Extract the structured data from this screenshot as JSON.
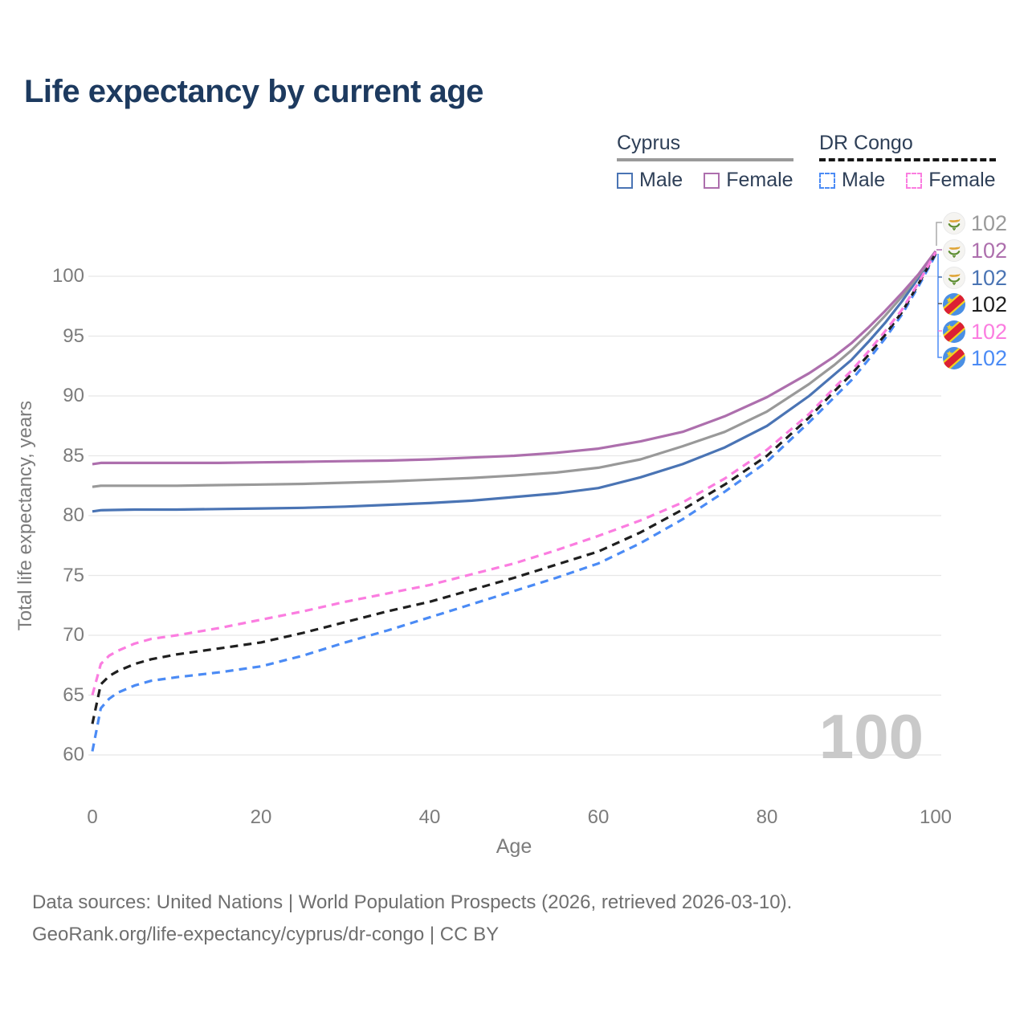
{
  "title": "Life expectancy by current age",
  "legend": {
    "groups": [
      {
        "name": "Cyprus",
        "line_style": "solid",
        "items": [
          {
            "label": "Male",
            "color": "#4a74b4"
          },
          {
            "label": "Female",
            "color": "#ad6fad"
          }
        ]
      },
      {
        "name": "DR Congo",
        "line_style": "dashed",
        "items": [
          {
            "label": "Male",
            "color": "#4b8bf5"
          },
          {
            "label": "Female",
            "color": "#fb7de0"
          }
        ]
      }
    ]
  },
  "watermark_age": "100",
  "end_labels": [
    {
      "value": "102",
      "color": "#9a9a9a",
      "flag": "cyprus",
      "series": "Cyprus Both sexes"
    },
    {
      "value": "102",
      "color": "#ad6fad",
      "flag": "cyprus",
      "series": "Cyprus Female"
    },
    {
      "value": "102",
      "color": "#4a74b4",
      "flag": "cyprus",
      "series": "Cyprus Male"
    },
    {
      "value": "102",
      "color": "#1f1f1f",
      "flag": "drcongo",
      "series": "DR Congo Both sexes"
    },
    {
      "value": "102",
      "color": "#fb7de0",
      "flag": "drcongo",
      "series": "DR Congo Female"
    },
    {
      "value": "102",
      "color": "#4b8bf5",
      "flag": "drcongo",
      "series": "DR Congo Male"
    }
  ],
  "footer": {
    "line1": "Data sources: United Nations | World Population Prospects (2026, retrieved 2026-03-10).",
    "line2": "GeoRank.org/life-expectancy/cyprus/dr-congo | CC BY"
  },
  "chart_data": {
    "type": "line",
    "title": "Life expectancy by current age",
    "xlabel": "Age",
    "ylabel": "Total life expectancy, years",
    "x_ticks": [
      0,
      20,
      40,
      60,
      80,
      100
    ],
    "y_ticks": [
      60,
      65,
      70,
      75,
      80,
      85,
      90,
      95,
      100
    ],
    "xlim": [
      0,
      100
    ],
    "ylim": [
      58.5,
      103
    ],
    "grid": "horizontal",
    "legend_position": "top-right",
    "series": [
      {
        "name": "Cyprus Male",
        "country": "Cyprus",
        "sex": "male",
        "color": "#4a74b4",
        "dash": "solid",
        "points": [
          [
            0,
            80.35
          ],
          [
            1,
            80.45
          ],
          [
            5,
            80.5
          ],
          [
            10,
            80.5
          ],
          [
            15,
            80.55
          ],
          [
            20,
            80.6
          ],
          [
            25,
            80.65
          ],
          [
            30,
            80.75
          ],
          [
            35,
            80.9
          ],
          [
            40,
            81.05
          ],
          [
            45,
            81.25
          ],
          [
            50,
            81.55
          ],
          [
            55,
            81.85
          ],
          [
            60,
            82.3
          ],
          [
            65,
            83.2
          ],
          [
            70,
            84.3
          ],
          [
            75,
            85.7
          ],
          [
            80,
            87.5
          ],
          [
            85,
            90.0
          ],
          [
            88,
            91.8
          ],
          [
            90,
            93.0
          ],
          [
            92,
            94.5
          ],
          [
            94,
            96.1
          ],
          [
            96,
            97.9
          ],
          [
            98,
            99.9
          ],
          [
            100,
            101.9
          ]
        ]
      },
      {
        "name": "Cyprus Both sexes",
        "country": "Cyprus",
        "sex": "both",
        "color": "#999999",
        "dash": "solid",
        "points": [
          [
            0,
            82.4
          ],
          [
            1,
            82.5
          ],
          [
            5,
            82.5
          ],
          [
            10,
            82.5
          ],
          [
            15,
            82.55
          ],
          [
            20,
            82.6
          ],
          [
            25,
            82.65
          ],
          [
            30,
            82.75
          ],
          [
            35,
            82.85
          ],
          [
            40,
            83.0
          ],
          [
            45,
            83.15
          ],
          [
            50,
            83.35
          ],
          [
            55,
            83.6
          ],
          [
            60,
            84.0
          ],
          [
            65,
            84.7
          ],
          [
            70,
            85.8
          ],
          [
            75,
            87.0
          ],
          [
            80,
            88.7
          ],
          [
            85,
            91.0
          ],
          [
            88,
            92.6
          ],
          [
            90,
            93.8
          ],
          [
            92,
            95.2
          ],
          [
            94,
            96.7
          ],
          [
            96,
            98.3
          ],
          [
            98,
            100.1
          ],
          [
            100,
            102.0
          ]
        ]
      },
      {
        "name": "Cyprus Female",
        "country": "Cyprus",
        "sex": "female",
        "color": "#ad6fad",
        "dash": "solid",
        "points": [
          [
            0,
            84.3
          ],
          [
            1,
            84.4
          ],
          [
            5,
            84.4
          ],
          [
            10,
            84.4
          ],
          [
            15,
            84.4
          ],
          [
            20,
            84.45
          ],
          [
            25,
            84.5
          ],
          [
            30,
            84.55
          ],
          [
            35,
            84.6
          ],
          [
            40,
            84.7
          ],
          [
            45,
            84.85
          ],
          [
            50,
            85.0
          ],
          [
            55,
            85.25
          ],
          [
            60,
            85.6
          ],
          [
            65,
            86.2
          ],
          [
            70,
            87.0
          ],
          [
            75,
            88.3
          ],
          [
            80,
            89.9
          ],
          [
            85,
            91.9
          ],
          [
            88,
            93.3
          ],
          [
            90,
            94.4
          ],
          [
            92,
            95.7
          ],
          [
            94,
            97.1
          ],
          [
            96,
            98.6
          ],
          [
            98,
            100.2
          ],
          [
            100,
            102.1
          ]
        ]
      },
      {
        "name": "DR Congo Male",
        "country": "DR Congo",
        "sex": "male",
        "color": "#4b8bf5",
        "dash": "dashed",
        "points": [
          [
            0,
            60.3
          ],
          [
            1,
            63.9
          ],
          [
            2,
            64.7
          ],
          [
            3,
            65.2
          ],
          [
            5,
            65.8
          ],
          [
            7,
            66.2
          ],
          [
            10,
            66.5
          ],
          [
            15,
            66.9
          ],
          [
            20,
            67.4
          ],
          [
            25,
            68.3
          ],
          [
            30,
            69.4
          ],
          [
            35,
            70.4
          ],
          [
            40,
            71.5
          ],
          [
            45,
            72.6
          ],
          [
            50,
            73.7
          ],
          [
            55,
            74.8
          ],
          [
            60,
            76.0
          ],
          [
            65,
            77.7
          ],
          [
            70,
            79.7
          ],
          [
            75,
            82.0
          ],
          [
            80,
            84.5
          ],
          [
            85,
            87.8
          ],
          [
            88,
            89.9
          ],
          [
            90,
            91.3
          ],
          [
            92,
            93.0
          ],
          [
            94,
            94.8
          ],
          [
            96,
            96.8
          ],
          [
            98,
            99.2
          ],
          [
            100,
            101.8
          ]
        ]
      },
      {
        "name": "DR Congo Both sexes",
        "country": "DR Congo",
        "sex": "both",
        "color": "#1f1f1f",
        "dash": "dashed",
        "points": [
          [
            0,
            62.6
          ],
          [
            1,
            65.9
          ],
          [
            2,
            66.6
          ],
          [
            3,
            67.0
          ],
          [
            5,
            67.6
          ],
          [
            7,
            68.0
          ],
          [
            10,
            68.4
          ],
          [
            15,
            68.9
          ],
          [
            20,
            69.4
          ],
          [
            25,
            70.2
          ],
          [
            30,
            71.1
          ],
          [
            35,
            72.0
          ],
          [
            40,
            72.8
          ],
          [
            45,
            73.8
          ],
          [
            50,
            74.8
          ],
          [
            55,
            75.9
          ],
          [
            60,
            77.0
          ],
          [
            65,
            78.6
          ],
          [
            70,
            80.5
          ],
          [
            75,
            82.6
          ],
          [
            80,
            85.0
          ],
          [
            85,
            88.2
          ],
          [
            88,
            90.4
          ],
          [
            90,
            91.8
          ],
          [
            92,
            93.4
          ],
          [
            94,
            95.1
          ],
          [
            96,
            97.0
          ],
          [
            98,
            99.4
          ],
          [
            100,
            101.9
          ]
        ]
      },
      {
        "name": "DR Congo Female",
        "country": "DR Congo",
        "sex": "female",
        "color": "#fb7de0",
        "dash": "dashed",
        "points": [
          [
            0,
            65.0
          ],
          [
            1,
            67.6
          ],
          [
            2,
            68.3
          ],
          [
            3,
            68.7
          ],
          [
            5,
            69.3
          ],
          [
            7,
            69.7
          ],
          [
            10,
            70.0
          ],
          [
            15,
            70.6
          ],
          [
            20,
            71.3
          ],
          [
            25,
            72.0
          ],
          [
            30,
            72.8
          ],
          [
            35,
            73.5
          ],
          [
            40,
            74.2
          ],
          [
            45,
            75.1
          ],
          [
            50,
            76.0
          ],
          [
            55,
            77.1
          ],
          [
            60,
            78.3
          ],
          [
            65,
            79.6
          ],
          [
            70,
            81.1
          ],
          [
            75,
            83.1
          ],
          [
            80,
            85.5
          ],
          [
            85,
            88.5
          ],
          [
            88,
            90.7
          ],
          [
            90,
            92.1
          ],
          [
            92,
            93.7
          ],
          [
            94,
            95.4
          ],
          [
            96,
            97.2
          ],
          [
            98,
            99.5
          ],
          [
            100,
            102.0
          ]
        ]
      }
    ],
    "end_values": {
      "age": 100,
      "all_series_value": 102
    }
  }
}
